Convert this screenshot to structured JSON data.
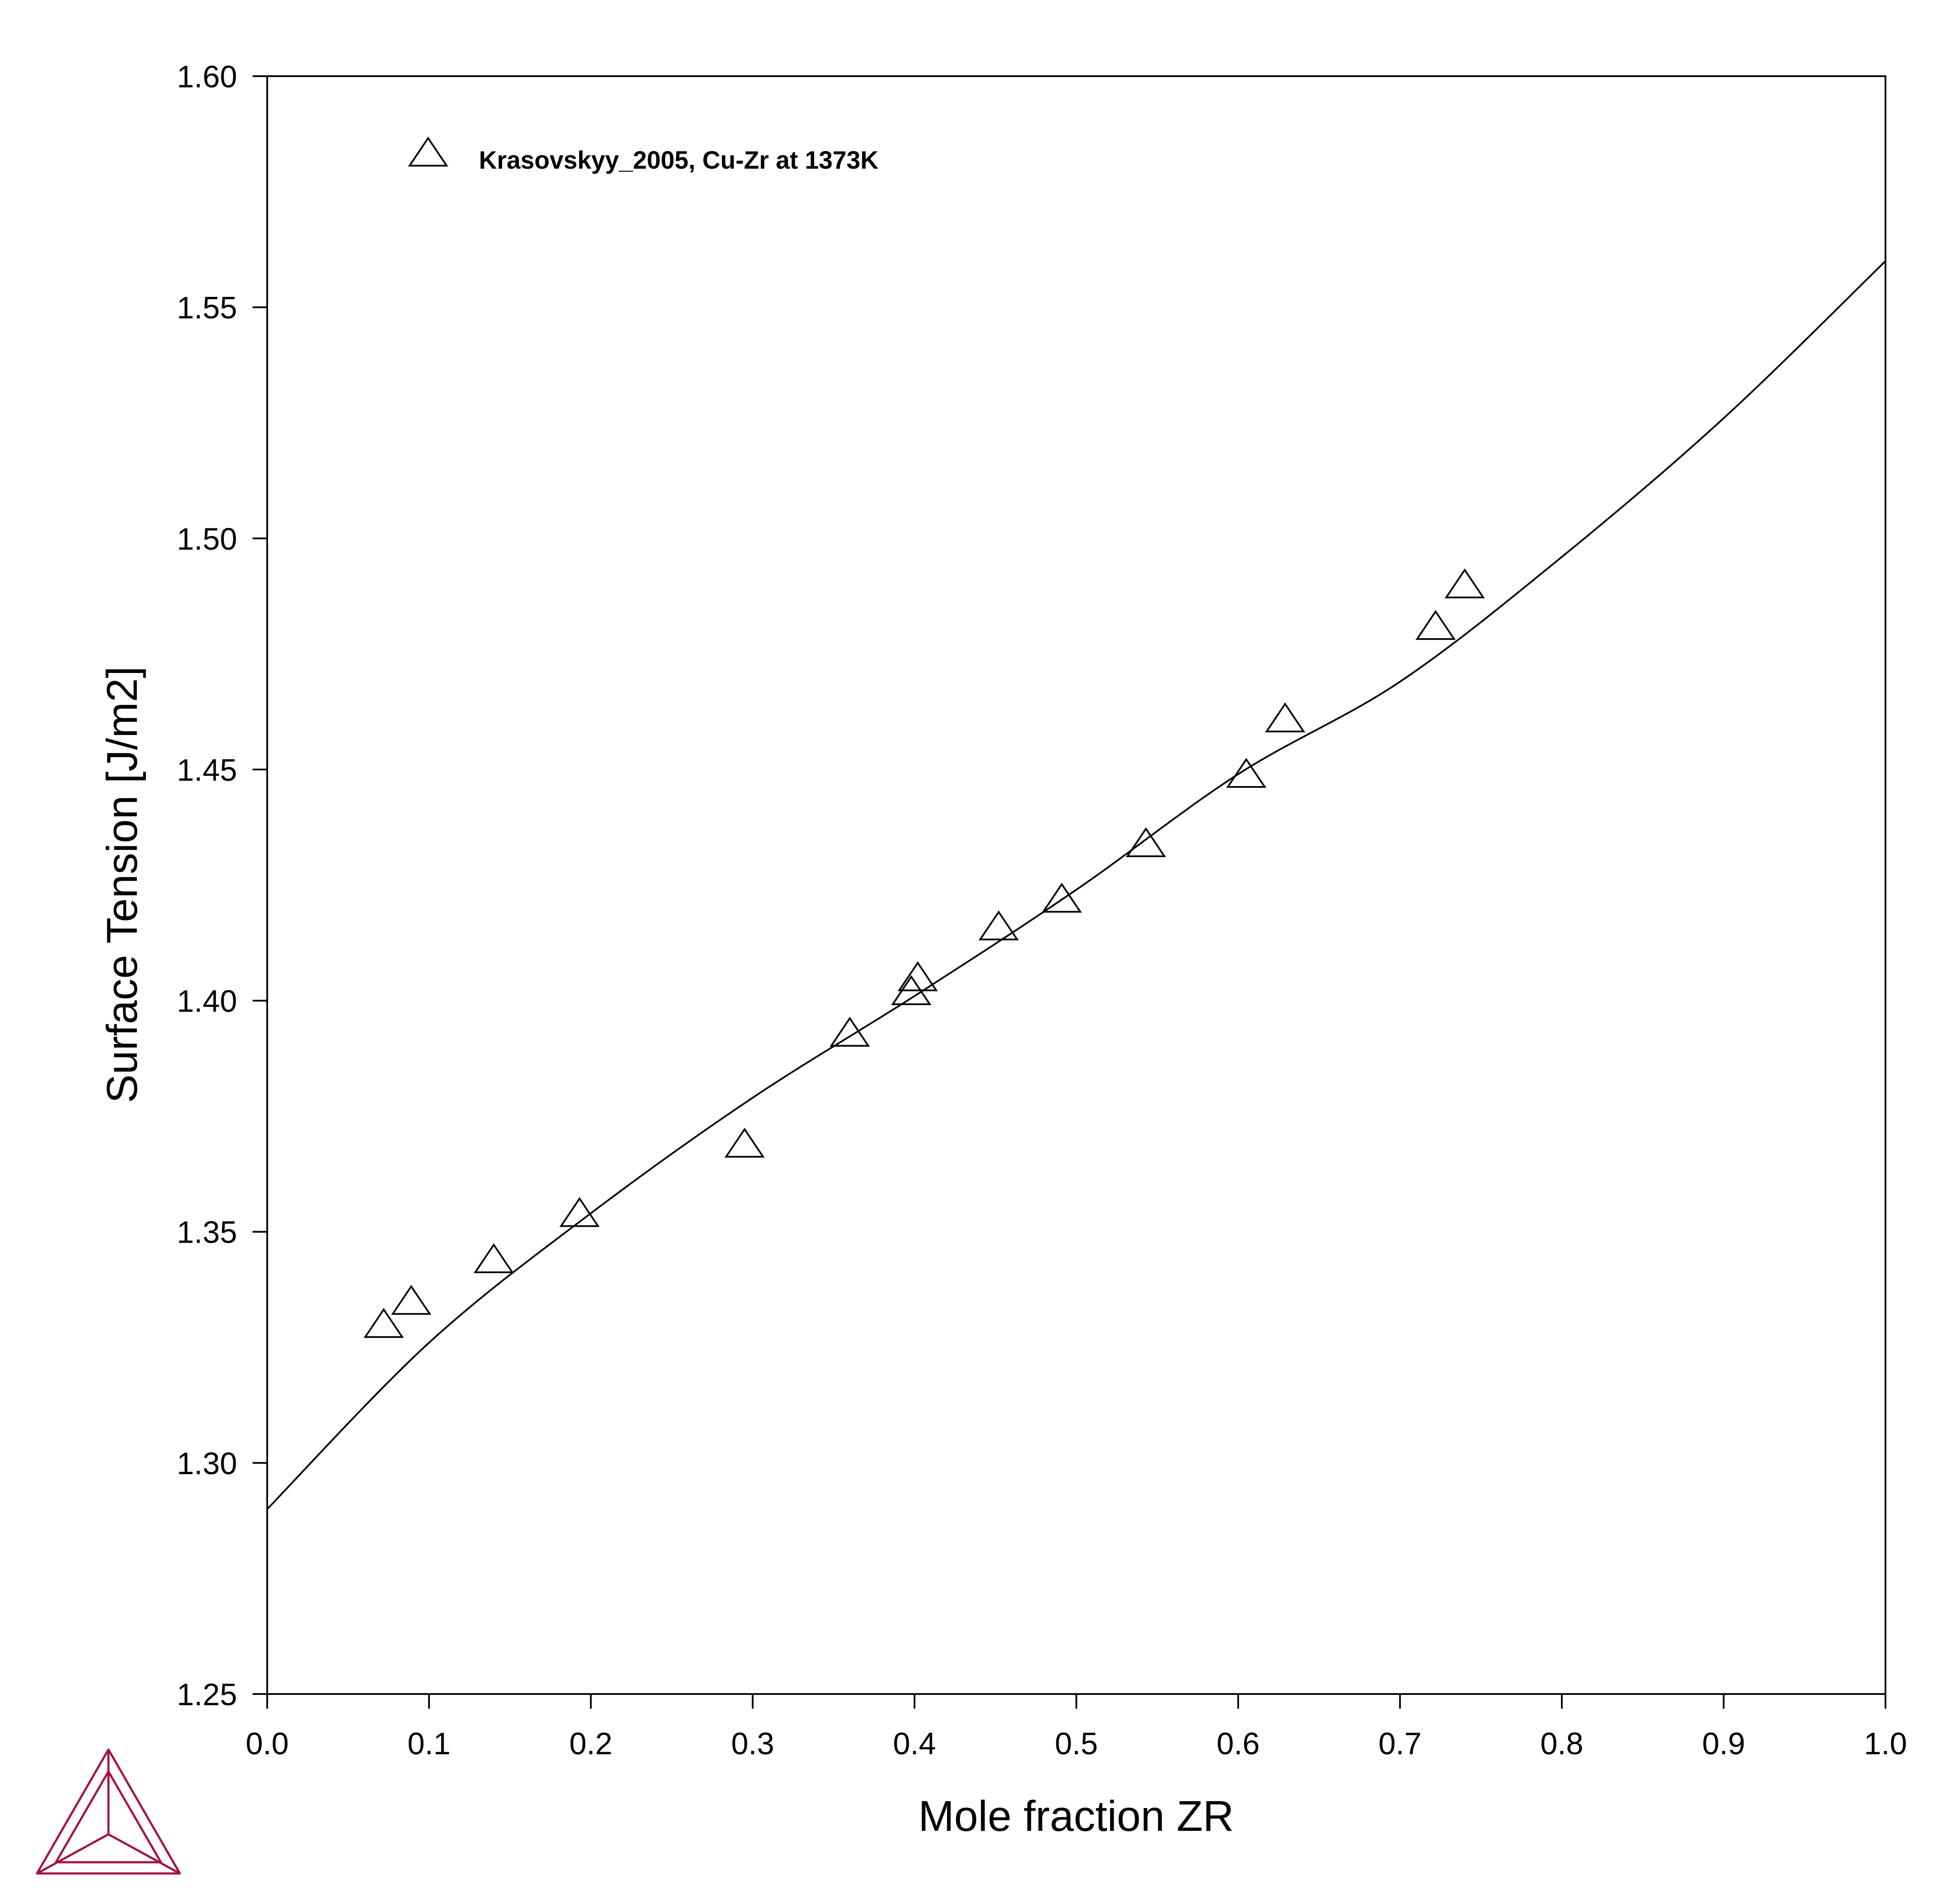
{
  "chart_data": {
    "type": "line",
    "title": "",
    "xlabel": "Mole fraction ZR",
    "ylabel": "Surface Tension [J/m2]",
    "xlim": [
      0.0,
      1.0
    ],
    "ylim": [
      1.25,
      1.6
    ],
    "xticks": [
      "0.0",
      "0.1",
      "0.2",
      "0.3",
      "0.4",
      "0.5",
      "0.6",
      "0.7",
      "0.8",
      "0.9",
      "1.0"
    ],
    "yticks": [
      "1.25",
      "1.30",
      "1.35",
      "1.40",
      "1.45",
      "1.50",
      "1.55",
      "1.60"
    ],
    "grid": false,
    "legend_position": "top-left",
    "series": [
      {
        "kind": "line",
        "color": "#000000",
        "x": [
          0.0,
          0.1,
          0.2,
          0.3,
          0.4,
          0.5,
          0.6,
          0.7,
          0.8,
          0.9,
          1.0
        ],
        "y": [
          1.29,
          1.326,
          1.354,
          1.379,
          1.401,
          1.424,
          1.449,
          1.469,
          1.496,
          1.526,
          1.56
        ]
      },
      {
        "kind": "scatter",
        "name": "Krasovskyy_2005, Cu-Zr at 1373K",
        "marker": "open-triangle",
        "color": "#000000",
        "x": [
          0.072,
          0.089,
          0.14,
          0.193,
          0.295,
          0.36,
          0.398,
          0.402,
          0.452,
          0.491,
          0.543,
          0.605,
          0.629,
          0.722,
          0.74
        ],
        "y": [
          1.329,
          1.334,
          1.343,
          1.353,
          1.368,
          1.392,
          1.401,
          1.404,
          1.415,
          1.421,
          1.433,
          1.448,
          1.46,
          1.48,
          1.489
        ]
      }
    ]
  },
  "logo": {
    "name": "Thermo-Calc logo",
    "color": "#a4123f"
  }
}
